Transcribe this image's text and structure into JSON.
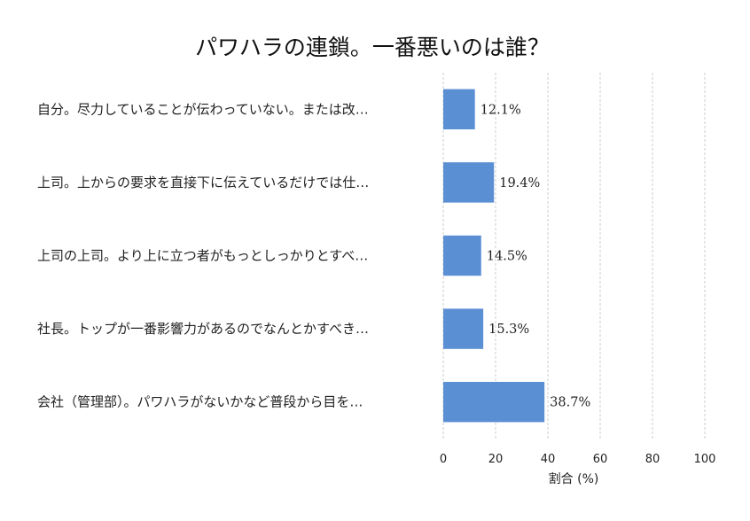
{
  "chart_data": {
    "type": "bar",
    "orientation": "horizontal",
    "title": "パワハラの連鎖。一番悪いのは誰？",
    "xlabel": "割合 (%)",
    "ylabel": "",
    "xlim": [
      0,
      100
    ],
    "xticks": [
      0,
      20,
      40,
      60,
      80,
      100
    ],
    "grid": true,
    "bar_color": "#5b8fd4",
    "categories": [
      "自分。尽力していることが伝わっていない。または改…",
      "上司。上からの要求を直接下に伝えているだけでは仕…",
      "上司の上司。より上に立つ者がもっとしっかりとすべ…",
      "社長。トップが一番影響力があるのでなんとかすべき…",
      "会社（管理部）。パワハラがないかなど普段から目を…"
    ],
    "values": [
      12.1,
      19.4,
      14.5,
      15.3,
      38.7
    ],
    "value_labels": [
      "12.1%",
      "19.4%",
      "14.5%",
      "15.3%",
      "38.7%"
    ]
  }
}
